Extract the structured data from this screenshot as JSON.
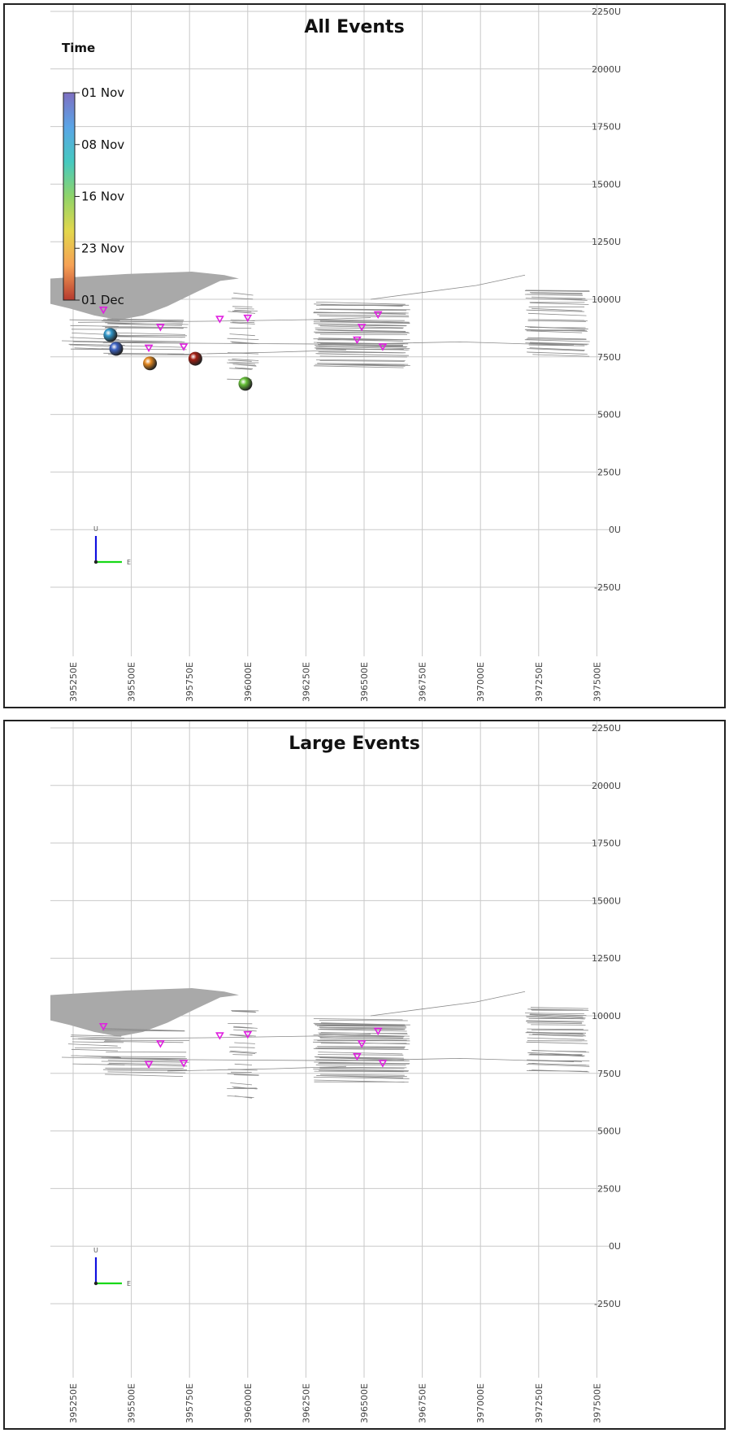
{
  "chart_data": [
    {
      "type": "scatter",
      "title": "All Events",
      "x_ticks": [
        "395250E",
        "395500E",
        "395750E",
        "396000E",
        "396250E",
        "396500E",
        "396750E",
        "397000E",
        "397250E",
        "397500E"
      ],
      "y_ticks": [
        "2250U",
        "2000U",
        "1750U",
        "1500U",
        "1250U",
        "1000U",
        "750U",
        "500U",
        "250U",
        "0U",
        "-250U"
      ],
      "xlim": [
        395125,
        397500
      ],
      "ylim": [
        -300,
        2260
      ],
      "grid": true,
      "colorbar": {
        "title": "Time",
        "labels": [
          "01 Nov",
          "08 Nov",
          "16 Nov",
          "23 Nov",
          "01 Dec"
        ],
        "colors": [
          "#7e6fc2",
          "#5aa5e6",
          "#46c9c0",
          "#8fd46a",
          "#e3d74c",
          "#f6a155",
          "#b5392e"
        ],
        "placement": "top-left"
      },
      "events": [
        {
          "x": 395410,
          "y": 845,
          "color": "#2f96c9"
        },
        {
          "x": 395435,
          "y": 785,
          "color": "#3d63c3"
        },
        {
          "x": 395580,
          "y": 722,
          "color": "#e58a23"
        },
        {
          "x": 395775,
          "y": 742,
          "color": "#a31f13"
        },
        {
          "x": 395990,
          "y": 633,
          "color": "#66c038"
        }
      ],
      "stations": [
        {
          "x": 395380,
          "y": 955
        },
        {
          "x": 395625,
          "y": 880
        },
        {
          "x": 395575,
          "y": 790
        },
        {
          "x": 395725,
          "y": 795
        },
        {
          "x": 395880,
          "y": 915
        },
        {
          "x": 396000,
          "y": 920
        },
        {
          "x": 396470,
          "y": 825
        },
        {
          "x": 396490,
          "y": 880
        },
        {
          "x": 396580,
          "y": 795
        },
        {
          "x": 396560,
          "y": 935
        }
      ],
      "marker_color": "#e020e0",
      "axis_gizmo": {
        "up_label": "U",
        "east_label": "E"
      }
    },
    {
      "type": "scatter",
      "title": "Large Events",
      "x_ticks": [
        "395250E",
        "395500E",
        "395750E",
        "396000E",
        "396250E",
        "396500E",
        "396750E",
        "397000E",
        "397250E",
        "397500E"
      ],
      "y_ticks": [
        "2250U",
        "2000U",
        "1750U",
        "1500U",
        "1250U",
        "1000U",
        "750U",
        "500U",
        "250U",
        "0U",
        "-250U"
      ],
      "xlim": [
        395125,
        397500
      ],
      "ylim": [
        -300,
        2260
      ],
      "grid": true,
      "events": [],
      "stations": [
        {
          "x": 395380,
          "y": 955
        },
        {
          "x": 395625,
          "y": 880
        },
        {
          "x": 395575,
          "y": 790
        },
        {
          "x": 395725,
          "y": 795
        },
        {
          "x": 395880,
          "y": 915
        },
        {
          "x": 396000,
          "y": 920
        },
        {
          "x": 396470,
          "y": 825
        },
        {
          "x": 396490,
          "y": 880
        },
        {
          "x": 396580,
          "y": 795
        },
        {
          "x": 396560,
          "y": 935
        }
      ],
      "marker_color": "#e020e0",
      "axis_gizmo": {
        "up_label": "U",
        "east_label": "E"
      }
    }
  ]
}
